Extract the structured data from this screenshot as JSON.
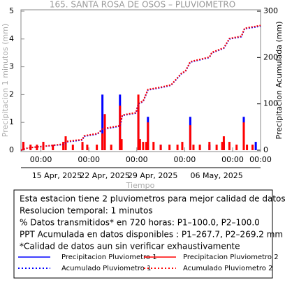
{
  "chart_data": {
    "type": "combo",
    "title": "165. SANTA ROSA DE OSOS – PLUVIOMETRO",
    "ylabel": "Precipitacion 1 minutos (mm)",
    "y2label": "Precipitacion Acumulada (mm)",
    "xlabel": "Tiempo",
    "xlim": [
      0,
      30
    ],
    "xticks": [
      {
        "value": 2.5,
        "label": "00:00"
      },
      {
        "value": 8.5,
        "label": "00:00"
      },
      {
        "value": 14.5,
        "label": "00:00"
      },
      {
        "value": 20.5,
        "label": "00:00"
      },
      {
        "value": 26.5,
        "label": "00:00"
      },
      {
        "value": 30,
        "label": "00:00"
      }
    ],
    "xticks_dates": [
      {
        "value": 4.5,
        "label": "15 Apr, 2025"
      },
      {
        "value": 10.5,
        "label": "22 Apr, 2025"
      },
      {
        "value": 16.5,
        "label": "29 Apr, 2025"
      },
      {
        "value": 24.5,
        "label": "06 May, 2025"
      }
    ],
    "ylim": [
      0,
      5
    ],
    "yticks": [
      0,
      1,
      2,
      3,
      4,
      5
    ],
    "y2lim": [
      0,
      300
    ],
    "y2ticks": [
      0,
      100,
      200,
      300
    ],
    "series": [
      {
        "name": "Precipitacion Pluviometro 1",
        "kind": "bar",
        "color": "#0000ff",
        "x": [
          0.3,
          2.8,
          5.6,
          7.7,
          10.2,
          12.4,
          14.7,
          15.9,
          17.5,
          21.2,
          23.6,
          25.4,
          27.9,
          29.4
        ],
        "values": [
          0.3,
          0.3,
          0.4,
          0.2,
          2.0,
          2.0,
          1.6,
          1.2,
          0.2,
          1.2,
          0.2,
          0.3,
          1.2,
          0.3
        ]
      },
      {
        "name": "Precipitacion Pluviometro 2",
        "kind": "bar",
        "color": "#ff0000",
        "x": [
          0.3,
          1.2,
          2.0,
          2.8,
          4.0,
          5.3,
          5.6,
          6.5,
          7.7,
          8.3,
          9.5,
          10.2,
          10.5,
          11.3,
          12.4,
          12.6,
          14.7,
          14.9,
          15.3,
          15.7,
          15.9,
          16.6,
          17.5,
          18.6,
          19.6,
          20.2,
          21.2,
          21.6,
          22.4,
          23.6,
          24.5,
          25.2,
          25.4,
          26.1,
          27.0,
          27.9,
          28.3,
          29.0
        ],
        "values": [
          0.3,
          0.2,
          0.2,
          0.3,
          0.2,
          0.3,
          0.5,
          0.2,
          0.3,
          0.2,
          0.2,
          0.6,
          1.3,
          0.2,
          1.6,
          0.4,
          2.0,
          0.4,
          0.3,
          0.3,
          1.0,
          0.3,
          0.2,
          0.2,
          0.2,
          0.3,
          0.9,
          0.2,
          0.2,
          0.3,
          0.2,
          0.3,
          0.5,
          0.3,
          0.2,
          1.0,
          0.2,
          0.2
        ]
      },
      {
        "name": "Acumulado Pluviometro 1",
        "kind": "line",
        "axis": "y2",
        "dash": "dotted",
        "color": "#0000ff",
        "x": [
          0,
          0.9,
          2.6,
          5.2,
          5.7,
          7.7,
          7.9,
          9.6,
          10.2,
          12.4,
          12.7,
          14.4,
          14.7,
          15.3,
          15.9,
          17.5,
          18.8,
          20.1,
          20.6,
          21.2,
          23.6,
          23.9,
          25.4,
          26.1,
          27.6,
          28.0,
          30.0
        ],
        "values": [
          0,
          5,
          8,
          12,
          18,
          22,
          30,
          35,
          45,
          52,
          75,
          80,
          100,
          105,
          130,
          135,
          140,
          165,
          170,
          190,
          200,
          210,
          220,
          240,
          245,
          262,
          267.7
        ]
      },
      {
        "name": "Acumulado Pluviometro 2",
        "kind": "line",
        "axis": "y2",
        "dash": "dotted",
        "color": "#ff0000",
        "x": [
          0,
          0.9,
          2.6,
          5.2,
          5.7,
          7.7,
          7.9,
          9.6,
          10.2,
          12.4,
          12.7,
          14.4,
          14.7,
          15.3,
          15.9,
          17.5,
          18.8,
          20.1,
          20.6,
          21.2,
          23.6,
          23.9,
          25.4,
          26.1,
          27.6,
          28.0,
          30.0
        ],
        "values": [
          0,
          5,
          8,
          13,
          19,
          23,
          31,
          36,
          46,
          53,
          76,
          81,
          101,
          106,
          131,
          136,
          141,
          166,
          171,
          191,
          201,
          211,
          221,
          241,
          246,
          263,
          269.2
        ]
      }
    ],
    "notes": [
      "Esta estacion tiene 2 pluviometros para mejor calidad de datos",
      "Resolucion temporal: 1 minutos",
      "% Datos transmitidos* en 720 horas: P1–100.0, P2–100.0",
      "PPT Acumulada en datos disponibles : P1–267.7, P2–269.2 mm",
      "*Calidad de datos aun sin verificar exhaustivamente"
    ]
  }
}
